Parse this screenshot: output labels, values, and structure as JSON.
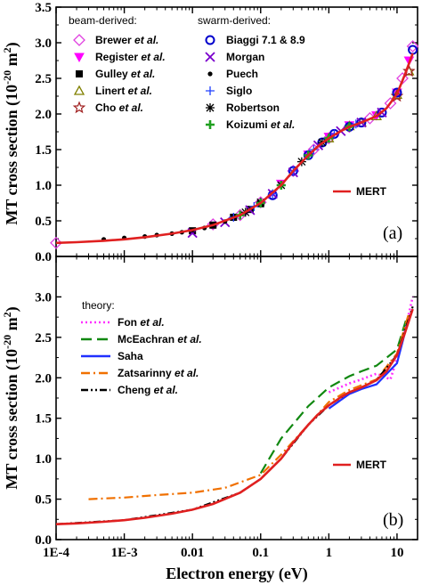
{
  "chart_data": [
    {
      "panel": "(a)",
      "type": "scatter",
      "ylabel_main": "MT cross section (10",
      "ylabel_exp": "-20",
      "ylabel_unit": "m",
      "ylabel_unit_exp": "2",
      "ylabel_close": ")",
      "xscale": "log",
      "xlim": [
        0.0001,
        20
      ],
      "ylim": [
        0.0,
        3.5
      ],
      "yticks": [
        "0.0",
        "0.5",
        "1.0",
        "1.5",
        "2.0",
        "2.5",
        "3.0",
        "3.5"
      ],
      "legend_groups": [
        {
          "heading": "beam-derived:",
          "entries": [
            {
              "name": "Brewer ",
              "italic": "et al.",
              "marker": "diamond-open",
              "color": "#e040e0"
            },
            {
              "name": "Register ",
              "italic": "et al.",
              "marker": "triangle-down-filled",
              "color": "#ff00ff"
            },
            {
              "name": "Gulley ",
              "italic": "et al.",
              "marker": "square-filled",
              "color": "#000000"
            },
            {
              "name": "Linert ",
              "italic": "et al.",
              "marker": "triangle-open",
              "color": "#808000"
            },
            {
              "name": "Cho ",
              "italic": "et al.",
              "marker": "star-open",
              "color": "#a02020"
            }
          ]
        },
        {
          "heading": "swarm-derived:",
          "entries": [
            {
              "name": "Biaggi 7.1 & 8.9",
              "italic": "",
              "marker": "circle-open",
              "color": "#0000cc"
            },
            {
              "name": "Morgan",
              "italic": "",
              "marker": "x",
              "color": "#7a00cc"
            },
            {
              "name": "Puech",
              "italic": "",
              "marker": "dot",
              "color": "#000000"
            },
            {
              "name": "Siglo",
              "italic": "",
              "marker": "plus",
              "color": "#2040ff"
            },
            {
              "name": "Robertson",
              "italic": "",
              "marker": "asterisk",
              "color": "#000000"
            },
            {
              "name": "Koizumi ",
              "italic": "et al.",
              "marker": "plus-thick",
              "color": "#20a020"
            }
          ]
        }
      ],
      "line_legend": {
        "name": "MERT",
        "color": "#e02020"
      },
      "mert_curve": {
        "x": [
          0.0001,
          0.0002,
          0.0005,
          0.001,
          0.002,
          0.005,
          0.01,
          0.02,
          0.05,
          0.1,
          0.2,
          0.3,
          0.5,
          0.7,
          1.0,
          1.5,
          2.0,
          3.0,
          5.0,
          7.0,
          10.0,
          13.0,
          17.0
        ],
        "y": [
          0.19,
          0.2,
          0.22,
          0.24,
          0.27,
          0.32,
          0.37,
          0.44,
          0.58,
          0.75,
          1.0,
          1.2,
          1.42,
          1.55,
          1.66,
          1.76,
          1.82,
          1.88,
          1.97,
          2.08,
          2.28,
          2.55,
          2.85
        ]
      },
      "series": [
        {
          "name": "Brewer et al.",
          "x": [
            0.0001,
            0.02,
            0.05,
            0.1,
            0.3,
            0.6,
            1.0,
            2.0,
            4.0,
            8.0,
            12.0,
            17.0
          ],
          "y": [
            0.19,
            0.45,
            0.58,
            0.76,
            1.2,
            1.5,
            1.66,
            1.82,
            1.94,
            2.15,
            2.5,
            2.95
          ]
        },
        {
          "name": "Register et al.",
          "x": [
            0.2,
            0.5,
            1.0,
            2.0,
            5.0,
            10.0,
            15.0
          ],
          "y": [
            1.02,
            1.43,
            1.68,
            1.84,
            1.98,
            2.3,
            2.75
          ]
        },
        {
          "name": "Gulley et al.",
          "x": [
            0.01,
            0.02,
            0.04,
            0.07,
            0.1
          ],
          "y": [
            0.36,
            0.44,
            0.55,
            0.66,
            0.74
          ]
        },
        {
          "name": "Linert et al.",
          "x": [
            1.0,
            2.0,
            3.0,
            5.0,
            10.0,
            15.0
          ],
          "y": [
            1.66,
            1.83,
            1.88,
            1.97,
            2.27,
            2.6
          ]
        },
        {
          "name": "Cho et al.",
          "x": [
            10.0,
            15.0
          ],
          "y": [
            2.25,
            2.6
          ]
        },
        {
          "name": "Biaggi 7.1 & 8.9",
          "x": [
            0.15,
            0.3,
            0.5,
            0.8,
            1.2,
            2.0,
            3.0,
            6.0,
            10.0,
            17.0
          ],
          "y": [
            0.86,
            1.2,
            1.42,
            1.6,
            1.72,
            1.82,
            1.88,
            2.02,
            2.3,
            2.9
          ]
        },
        {
          "name": "Morgan",
          "x": [
            0.01,
            0.03,
            0.07,
            0.15,
            0.3,
            0.7,
            1.5,
            3.0,
            6.0
          ],
          "y": [
            0.33,
            0.48,
            0.65,
            0.88,
            1.18,
            1.56,
            1.76,
            1.88,
            2.02
          ]
        },
        {
          "name": "Puech",
          "x": [
            0.0005,
            0.001,
            0.002,
            0.003,
            0.005,
            0.007,
            0.01,
            0.015,
            0.02,
            0.03
          ],
          "y": [
            0.24,
            0.26,
            0.28,
            0.3,
            0.32,
            0.34,
            0.37,
            0.4,
            0.44,
            0.49
          ]
        },
        {
          "name": "Siglo",
          "x": [
            0.04,
            0.08,
            0.15,
            0.3,
            0.6,
            1.2,
            2.5
          ],
          "y": [
            0.55,
            0.7,
            0.88,
            1.2,
            1.5,
            1.72,
            1.86
          ]
        },
        {
          "name": "Robertson",
          "x": [
            0.06,
            0.1,
            0.2,
            0.4,
            0.8
          ],
          "y": [
            0.62,
            0.76,
            1.0,
            1.33,
            1.6
          ]
        },
        {
          "name": "Koizumi et al.",
          "x": [
            0.05,
            0.1,
            0.2,
            0.5,
            1.0,
            2.0
          ],
          "y": [
            0.58,
            0.75,
            1.0,
            1.42,
            1.66,
            1.82
          ]
        }
      ],
      "panel_label": "(a)"
    },
    {
      "panel": "(b)",
      "type": "line",
      "xscale": "log",
      "xlim": [
        0.0001,
        20
      ],
      "ylim": [
        0.0,
        3.5
      ],
      "xticks": [
        "1E-4",
        "1E-3",
        "0.01",
        "0.1",
        "1",
        "10"
      ],
      "yticks": [
        "0.0",
        "0.5",
        "1.0",
        "1.5",
        "2.0",
        "2.5",
        "3.0"
      ],
      "xlabel": "Electron energy (eV)",
      "legend_heading": "theory:",
      "series": [
        {
          "name": "Fon ",
          "italic": "et al.",
          "color": "#ff30ff",
          "dash": "2,3",
          "x": [
            1.0,
            2.0,
            3.0,
            5.0,
            8.0,
            12.0,
            17.0
          ],
          "y": [
            1.82,
            1.93,
            1.98,
            2.05,
            1.98,
            2.45,
            3.0
          ]
        },
        {
          "name": "McEachran ",
          "italic": "et al.",
          "color": "#118811",
          "dash": "12,6",
          "x": [
            0.1,
            0.2,
            0.5,
            1.0,
            2.0,
            3.0,
            5.0,
            10.0,
            14.0
          ],
          "y": [
            0.82,
            1.25,
            1.65,
            1.88,
            2.02,
            2.08,
            2.15,
            2.35,
            2.75
          ]
        },
        {
          "name": "Saha",
          "italic": "",
          "color": "#2030ff",
          "dash": "",
          "x": [
            1.0,
            2.0,
            3.0,
            5.0,
            10.0,
            15.0
          ],
          "y": [
            1.62,
            1.8,
            1.86,
            1.92,
            2.18,
            2.75
          ]
        },
        {
          "name": "Zatsarinny ",
          "italic": "et al.",
          "color": "#f07000",
          "dash": "10,4,2,4",
          "x": [
            0.0003,
            0.001,
            0.003,
            0.01,
            0.03,
            0.1,
            0.2,
            0.5,
            1.0,
            2.0,
            5.0,
            10.0,
            15.0
          ],
          "y": [
            0.5,
            0.52,
            0.55,
            0.58,
            0.64,
            0.8,
            1.05,
            1.42,
            1.7,
            1.85,
            1.98,
            2.3,
            2.8
          ]
        },
        {
          "name": "Cheng ",
          "italic": "et al.",
          "color": "#000000",
          "dash": "8,3,2,3,2,3",
          "x": [
            0.0001,
            0.001,
            0.01,
            0.05,
            0.1,
            0.2,
            0.5,
            1.0,
            2.0,
            3.0,
            5.0,
            10.0,
            17.0
          ],
          "y": [
            0.19,
            0.24,
            0.37,
            0.58,
            0.75,
            1.0,
            1.42,
            1.66,
            1.82,
            1.88,
            1.97,
            2.28,
            2.88
          ]
        }
      ],
      "line_legend": {
        "name": "MERT",
        "color": "#e02020"
      },
      "mert_curve": {
        "x": [
          0.0001,
          0.0002,
          0.0005,
          0.001,
          0.002,
          0.005,
          0.01,
          0.02,
          0.05,
          0.1,
          0.2,
          0.3,
          0.5,
          0.7,
          1.0,
          1.5,
          2.0,
          3.0,
          5.0,
          7.0,
          10.0,
          13.0,
          17.0
        ],
        "y": [
          0.19,
          0.2,
          0.22,
          0.24,
          0.27,
          0.32,
          0.37,
          0.44,
          0.58,
          0.75,
          1.0,
          1.2,
          1.42,
          1.55,
          1.66,
          1.76,
          1.82,
          1.88,
          1.97,
          2.08,
          2.28,
          2.55,
          2.85
        ]
      },
      "panel_label": "(b)"
    }
  ]
}
